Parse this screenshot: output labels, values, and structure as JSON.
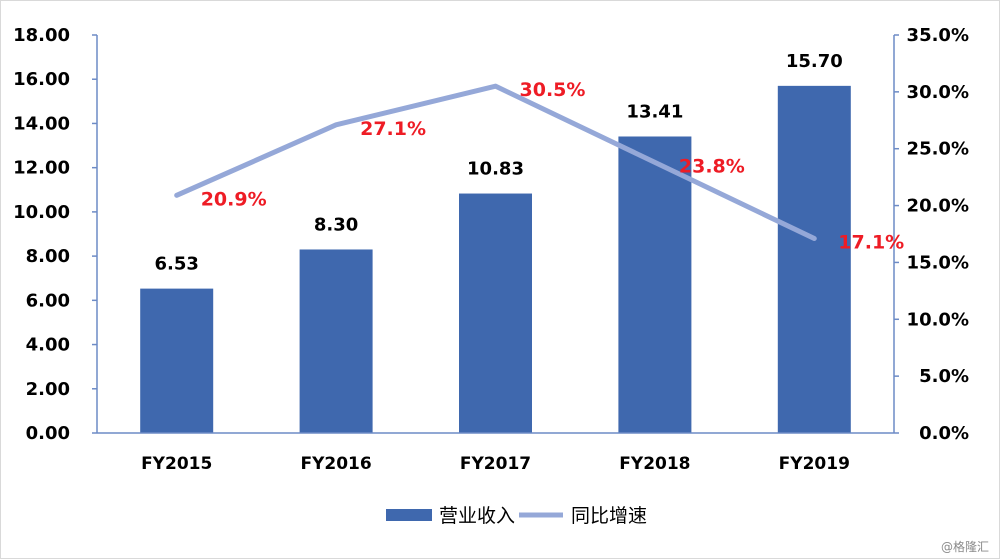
{
  "chart_data": {
    "type": "bar+line",
    "categories": [
      "FY2015",
      "FY2016",
      "FY2017",
      "FY2018",
      "FY2019"
    ],
    "series": [
      {
        "name": "营业收入",
        "type": "bar",
        "axis": "left",
        "values": [
          6.53,
          8.3,
          10.83,
          13.41,
          15.7
        ],
        "labels": [
          "6.53",
          "8.30",
          "10.83",
          "13.41",
          "15.70"
        ],
        "color": "#3f68ae"
      },
      {
        "name": "同比增速",
        "type": "line",
        "axis": "right",
        "values": [
          20.9,
          27.1,
          30.5,
          23.8,
          17.1
        ],
        "labels": [
          "20.9%",
          "27.1%",
          "30.5%",
          "23.8%",
          "17.1%"
        ],
        "color": "#95a8d8",
        "label_color": "#ee1c25"
      }
    ],
    "y_left": {
      "min": 0,
      "max": 18,
      "ticks": [
        "0.00",
        "2.00",
        "4.00",
        "6.00",
        "8.00",
        "10.00",
        "12.00",
        "14.00",
        "16.00",
        "18.00"
      ]
    },
    "y_right": {
      "min": 0,
      "max": 35,
      "ticks": [
        "0.0%",
        "5.0%",
        "10.0%",
        "15.0%",
        "20.0%",
        "25.0%",
        "30.0%",
        "35.0%"
      ]
    },
    "legend": "bottom-center",
    "grid": false
  },
  "watermark": "@格隆汇"
}
